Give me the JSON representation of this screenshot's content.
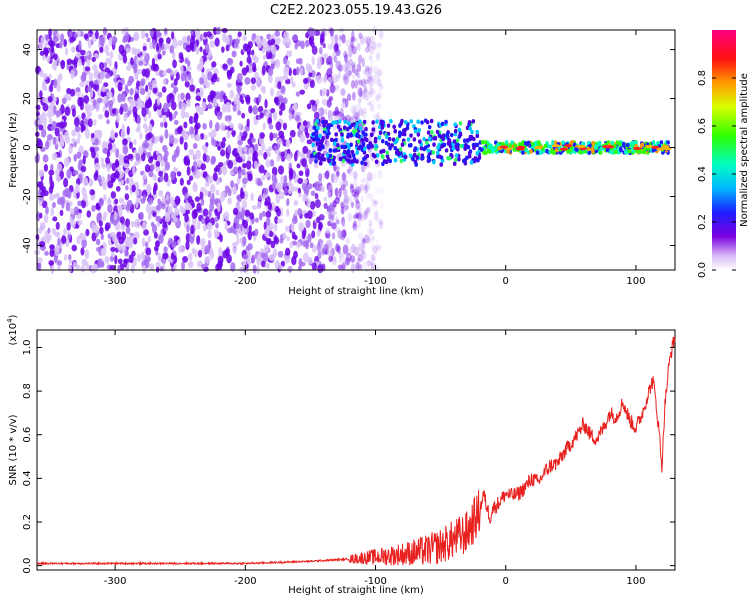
{
  "figure": {
    "title": "C2E2.2023.055.19.43.G26"
  },
  "colors": {
    "snr_line": "#e8211f",
    "axis": "#000000",
    "spectrogram_low": "#ffffff",
    "spectrogram_mid": "#6a00e6"
  },
  "chart_data": [
    {
      "type": "heatmap",
      "name": "spectrogram",
      "xlabel": "Height of straight line (km)",
      "ylabel": "Frequency (Hz)",
      "xlim": [
        -360,
        130
      ],
      "ylim": [
        -50,
        48
      ],
      "x_ticks": [
        -300,
        -200,
        -100,
        0,
        100
      ],
      "x_tick_labels": [
        "-300",
        "-200",
        "-100",
        "0",
        "100"
      ],
      "y_ticks": [
        40,
        20,
        0,
        -20,
        -40
      ],
      "y_tick_labels": [
        "40",
        "20",
        "0",
        "-20",
        "-40"
      ],
      "colormap": "rainbow (white → purple → blue → cyan → green → yellow → red → magenta)",
      "colorbar": {
        "label": "Normalized spectral amplitude",
        "range": [
          0.0,
          1.0
        ],
        "ticks": [
          0.0,
          0.2,
          0.4,
          0.6,
          0.8
        ],
        "tick_labels": [
          "0.0",
          "0.2",
          "0.4",
          "0.6",
          "0.8"
        ]
      },
      "description_points": {
        "noise_region_x": [
          -360,
          -110
        ],
        "signal_band_center_hz": 0,
        "signal_peak_x": [
          -20,
          125
        ]
      }
    },
    {
      "type": "line",
      "name": "snr",
      "xlabel": "Height of straight line (km)",
      "ylabel": "SNR (10 * v/v)",
      "scale_label": "(x10",
      "scale_exp": "4",
      "scale_close": ")",
      "xlim": [
        -360,
        130
      ],
      "ylim": [
        -0.02,
        1.08
      ],
      "x_ticks": [
        -300,
        -200,
        -100,
        0,
        100
      ],
      "x_tick_labels": [
        "-300",
        "-200",
        "-100",
        "0",
        "100"
      ],
      "y_ticks": [
        0.0,
        0.2,
        0.4,
        0.6,
        0.8,
        1.0
      ],
      "y_tick_labels": [
        "0.0",
        "0.2",
        "0.4",
        "0.6",
        "0.8",
        "1.0"
      ],
      "grid": false,
      "series": [
        {
          "x": [
            -360,
            -300,
            -200,
            -150,
            -120,
            -100,
            -80,
            -60,
            -50,
            -40,
            -30,
            -25,
            -20,
            -17,
            -15,
            -12,
            -10,
            -5,
            0,
            5,
            10,
            15,
            20,
            25,
            30,
            35,
            40,
            45,
            50,
            55,
            60,
            65,
            70,
            75,
            80,
            85,
            90,
            95,
            100,
            105,
            110,
            113,
            115,
            118,
            120,
            122,
            125,
            127,
            130
          ],
          "values": [
            0.01,
            0.01,
            0.01,
            0.02,
            0.03,
            0.04,
            0.05,
            0.07,
            0.09,
            0.12,
            0.15,
            0.2,
            0.25,
            0.33,
            0.28,
            0.22,
            0.26,
            0.29,
            0.33,
            0.32,
            0.33,
            0.36,
            0.4,
            0.38,
            0.43,
            0.46,
            0.47,
            0.52,
            0.56,
            0.6,
            0.65,
            0.6,
            0.58,
            0.63,
            0.7,
            0.68,
            0.75,
            0.67,
            0.63,
            0.7,
            0.8,
            0.85,
            0.77,
            0.6,
            0.45,
            0.72,
            0.9,
            0.98,
            1.05
          ]
        }
      ]
    }
  ]
}
